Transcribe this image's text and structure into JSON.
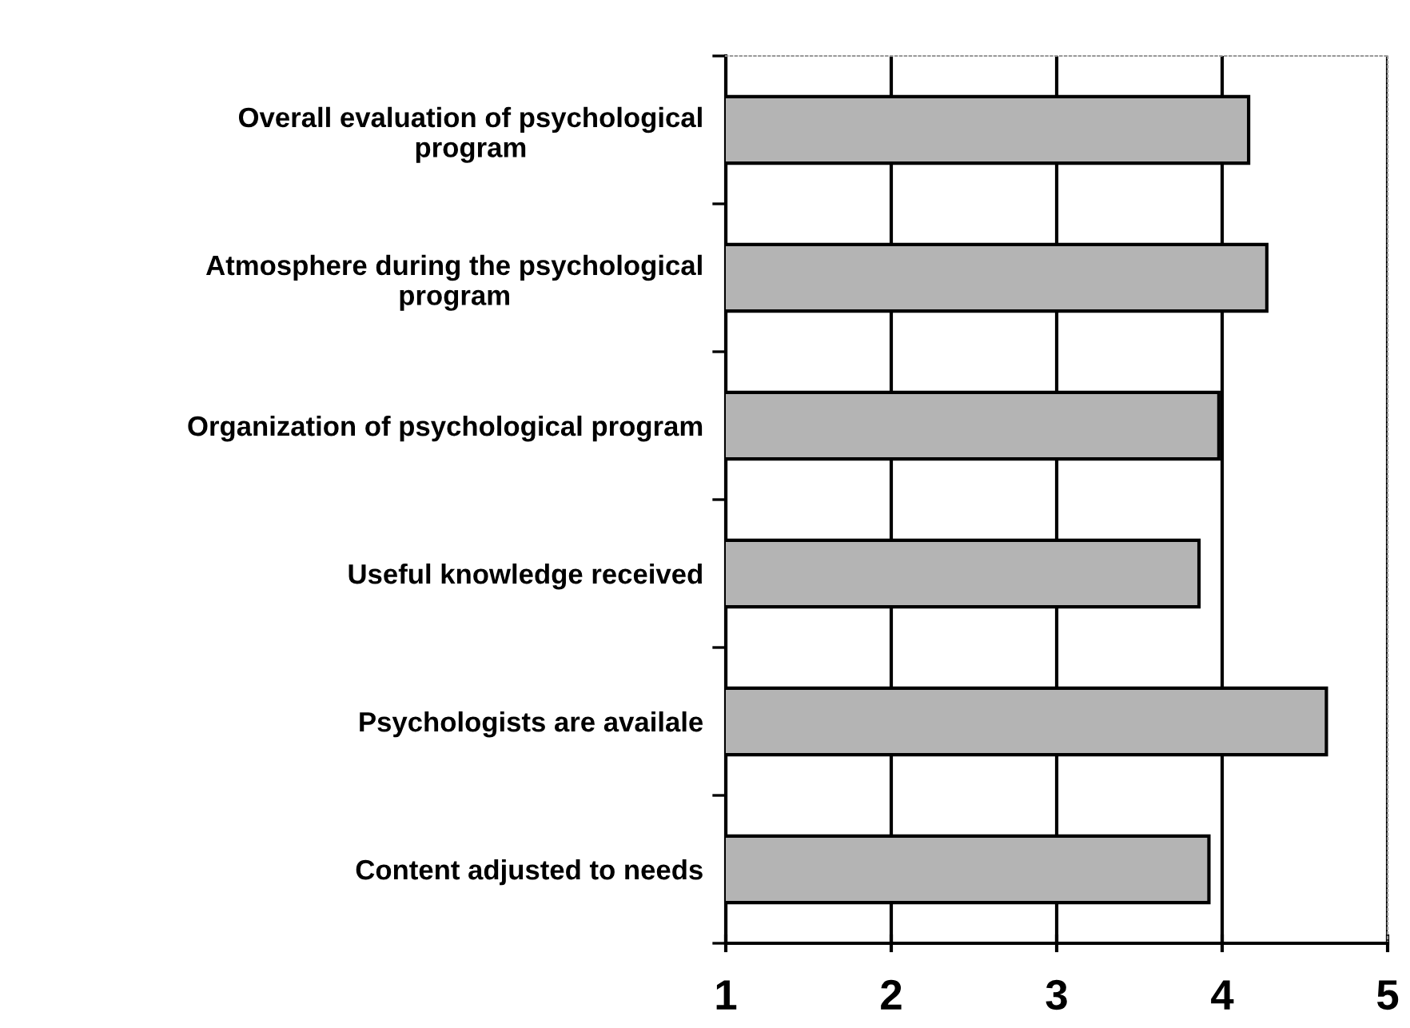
{
  "chart_data": {
    "type": "bar",
    "orientation": "horizontal",
    "categories": [
      "Overall evaluation of psychological\nprogram",
      "Atmosphere during the psychological\nprogram",
      "Organization of psychological program",
      "Useful knowledge received",
      "Psychologists are availale",
      "Content adjusted to needs"
    ],
    "values": [
      4.16,
      4.27,
      3.98,
      3.86,
      4.63,
      3.92
    ],
    "color": "#b4b4b4",
    "xlim": [
      1,
      5
    ],
    "xticks": [
      1,
      2,
      3,
      4,
      5
    ],
    "grid": "x"
  }
}
